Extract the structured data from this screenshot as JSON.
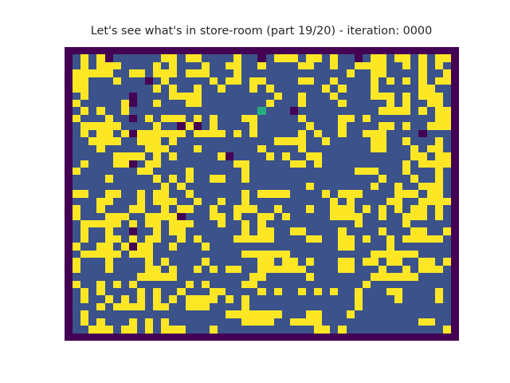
{
  "title": "Let's see what's in store-room (part 19/20) - iteration: 0000",
  "palette": {
    "0": "#440154",
    "1": "#3b528b",
    "2": "#21918c",
    "3": "#27ad81",
    "4": "#fde725"
  },
  "legend_meaning": {
    "0": "wall",
    "1": "floor",
    "3": "agent",
    "4": "item"
  },
  "grid": [
    "0000000000000000000000000000000000000000000000000",
    "0141401111114414411114110144414414110144144141440",
    "0141444111141411141144114111144114114444114141410",
    "0444441144144414441114111111111111141144111141140",
    "0441114111014111114144144111144114111141414141440",
    "0441111111141411411411141411111141411141111144110",
    "0141111101111444411111111141141114111144414144410",
    "0411111401141114411111111411141111411111414114410",
    "0141411411111111111111113111011111111114444141440",
    "0411141101414441414111441111141111441411111111440",
    "0144444111141104014111141111114111411114414114440",
    "0141441404444441444414141111141411411444111101110",
    "0114444114441411111111111144441141111144114111410",
    "0111411111444111411111114111141111111144111414410",
    "0111114444141411111401111414114411111111111441440",
    "0141114401441111111114411111441411111111114144440",
    "0411111114411114111111411111111111114441114111410",
    "0111141111141414114411411111111111111114111411410",
    "0111111111114141111111111111114111111141141144410",
    "0441144114144114111111414444111141444111144414410",
    "0111441114144411411411411111111114141111441144440",
    "0411411144114144114114441141114114441414141441410",
    "0411144411444401114414114414111114444114114441410",
    "0144444141441444111411414111111111114111114111110",
    "0141141101141441111111414411441111411114111441140",
    "0141144141441141411114444411114411441411414444410",
    "0411441404411411141111111111111111441111411111110",
    "0144444144411111111111444444111111111144444411110",
    "0411141111414111141111114414414111441441441144140",
    "0411141111441411414144114444441111441114114144410",
    "0111111114444411111111144111114111111144444411110",
    "0411414141111114141111441111111111111411111111110",
    "0141411114141141114411114141141414114111441111410",
    "0141141414141414444141411111111111114111141111410",
    "0111414444144114441111411111111111114111111111110",
    "0141111111111111111144444441114411141111111111110",
    "0141411141414111111111444411444411111111111144110",
    "0114441441414441114111111111111441411111111111140",
    "0000000000000000000000000000000000000000000000000"
  ]
}
